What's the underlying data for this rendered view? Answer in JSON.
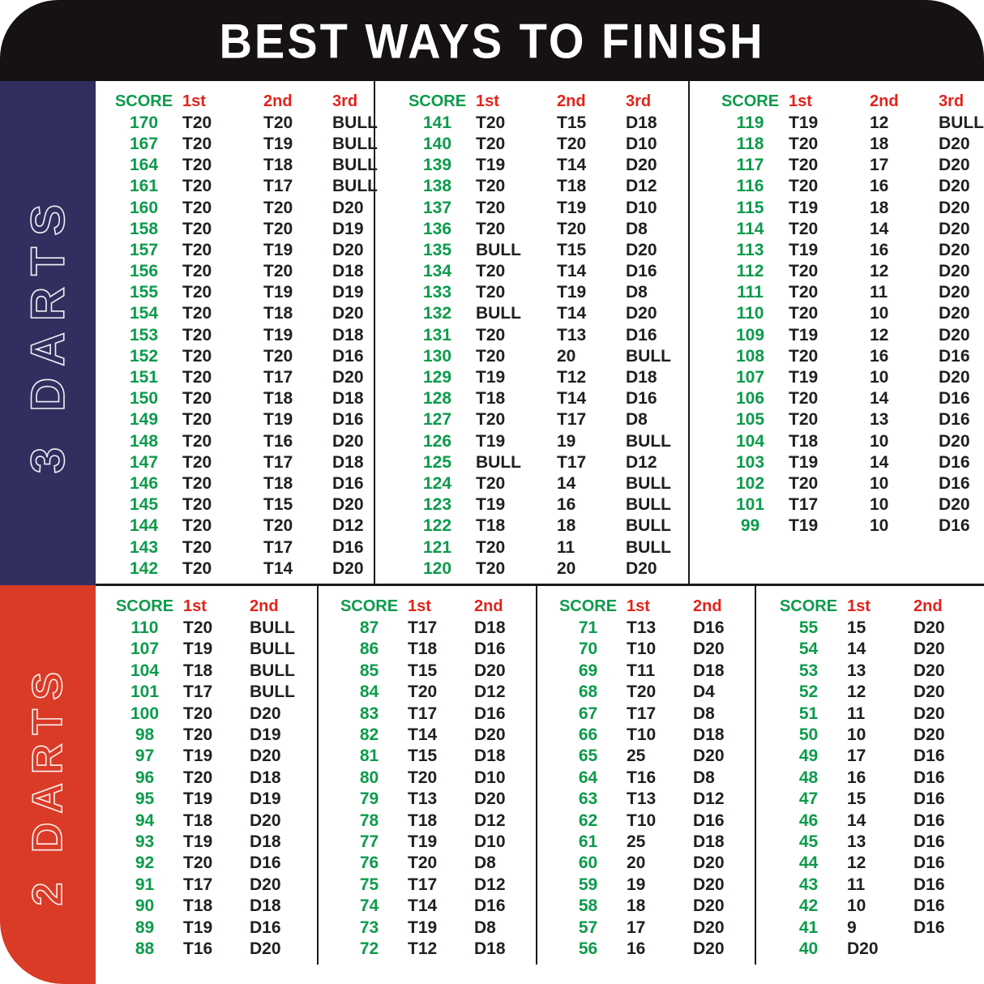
{
  "title": "BEST WAYS TO FINISH",
  "colors": {
    "header_bg": "#151114",
    "score_green": "#0C9B4B",
    "header_red": "#E2231B",
    "value_black": "#221E1F",
    "sidebar_navy": "#322E5F",
    "sidebar_red": "#D93B27"
  },
  "sections": [
    {
      "label": "3 DARTS",
      "columns": [
        "SCORE",
        "1st",
        "2nd",
        "3rd"
      ],
      "tables": [
        {
          "rows": [
            [
              "170",
              "T20",
              "T20",
              "BULL"
            ],
            [
              "167",
              "T20",
              "T19",
              "BULL"
            ],
            [
              "164",
              "T20",
              "T18",
              "BULL"
            ],
            [
              "161",
              "T20",
              "T17",
              "BULL"
            ],
            [
              "160",
              "T20",
              "T20",
              "D20"
            ],
            [
              "158",
              "T20",
              "T20",
              "D19"
            ],
            [
              "157",
              "T20",
              "T19",
              "D20"
            ],
            [
              "156",
              "T20",
              "T20",
              "D18"
            ],
            [
              "155",
              "T20",
              "T19",
              "D19"
            ],
            [
              "154",
              "T20",
              "T18",
              "D20"
            ],
            [
              "153",
              "T20",
              "T19",
              "D18"
            ],
            [
              "152",
              "T20",
              "T20",
              "D16"
            ],
            [
              "151",
              "T20",
              "T17",
              "D20"
            ],
            [
              "150",
              "T20",
              "T18",
              "D18"
            ],
            [
              "149",
              "T20",
              "T19",
              "D16"
            ],
            [
              "148",
              "T20",
              "T16",
              "D20"
            ],
            [
              "147",
              "T20",
              "T17",
              "D18"
            ],
            [
              "146",
              "T20",
              "T18",
              "D16"
            ],
            [
              "145",
              "T20",
              "T15",
              "D20"
            ],
            [
              "144",
              "T20",
              "T20",
              "D12"
            ],
            [
              "143",
              "T20",
              "T17",
              "D16"
            ],
            [
              "142",
              "T20",
              "T14",
              "D20"
            ]
          ]
        },
        {
          "rows": [
            [
              "141",
              "T20",
              "T15",
              "D18"
            ],
            [
              "140",
              "T20",
              "T20",
              "D10"
            ],
            [
              "139",
              "T19",
              "T14",
              "D20"
            ],
            [
              "138",
              "T20",
              "T18",
              "D12"
            ],
            [
              "137",
              "T20",
              "T19",
              "D10"
            ],
            [
              "136",
              "T20",
              "T20",
              "D8"
            ],
            [
              "135",
              "BULL",
              "T15",
              "D20"
            ],
            [
              "134",
              "T20",
              "T14",
              "D16"
            ],
            [
              "133",
              "T20",
              "T19",
              "D8"
            ],
            [
              "132",
              "BULL",
              "T14",
              "D20"
            ],
            [
              "131",
              "T20",
              "T13",
              "D16"
            ],
            [
              "130",
              "T20",
              "20",
              "BULL"
            ],
            [
              "129",
              "T19",
              "T12",
              "D18"
            ],
            [
              "128",
              "T18",
              "T14",
              "D16"
            ],
            [
              "127",
              "T20",
              "T17",
              "D8"
            ],
            [
              "126",
              "T19",
              "19",
              "BULL"
            ],
            [
              "125",
              "BULL",
              "T17",
              "D12"
            ],
            [
              "124",
              "T20",
              "14",
              "BULL"
            ],
            [
              "123",
              "T19",
              "16",
              "BULL"
            ],
            [
              "122",
              "T18",
              "18",
              "BULL"
            ],
            [
              "121",
              "T20",
              "11",
              "BULL"
            ],
            [
              "120",
              "T20",
              "20",
              "D20"
            ]
          ]
        },
        {
          "rows": [
            [
              "119",
              "T19",
              "12",
              "BULL"
            ],
            [
              "118",
              "T20",
              "18",
              "D20"
            ],
            [
              "117",
              "T20",
              "17",
              "D20"
            ],
            [
              "116",
              "T20",
              "16",
              "D20"
            ],
            [
              "115",
              "T19",
              "18",
              "D20"
            ],
            [
              "114",
              "T20",
              "14",
              "D20"
            ],
            [
              "113",
              "T19",
              "16",
              "D20"
            ],
            [
              "112",
              "T20",
              "12",
              "D20"
            ],
            [
              "111",
              "T20",
              "11",
              "D20"
            ],
            [
              "110",
              "T20",
              "10",
              "D20"
            ],
            [
              "109",
              "T19",
              "12",
              "D20"
            ],
            [
              "108",
              "T20",
              "16",
              "D16"
            ],
            [
              "107",
              "T19",
              "10",
              "D20"
            ],
            [
              "106",
              "T20",
              "14",
              "D16"
            ],
            [
              "105",
              "T20",
              "13",
              "D16"
            ],
            [
              "104",
              "T18",
              "10",
              "D20"
            ],
            [
              "103",
              "T19",
              "14",
              "D16"
            ],
            [
              "102",
              "T20",
              "10",
              "D16"
            ],
            [
              "101",
              "T17",
              "10",
              "D20"
            ],
            [
              "99",
              "T19",
              "10",
              "D16"
            ]
          ]
        }
      ]
    },
    {
      "label": "2 DARTS",
      "columns": [
        "SCORE",
        "1st",
        "2nd"
      ],
      "tables": [
        {
          "rows": [
            [
              "110",
              "T20",
              "BULL"
            ],
            [
              "107",
              "T19",
              "BULL"
            ],
            [
              "104",
              "T18",
              "BULL"
            ],
            [
              "101",
              "T17",
              "BULL"
            ],
            [
              "100",
              "T20",
              "D20"
            ],
            [
              "98",
              "T20",
              "D19"
            ],
            [
              "97",
              "T19",
              "D20"
            ],
            [
              "96",
              "T20",
              "D18"
            ],
            [
              "95",
              "T19",
              "D19"
            ],
            [
              "94",
              "T18",
              "D20"
            ],
            [
              "93",
              "T19",
              "D18"
            ],
            [
              "92",
              "T20",
              "D16"
            ],
            [
              "91",
              "T17",
              "D20"
            ],
            [
              "90",
              "T18",
              "D18"
            ],
            [
              "89",
              "T19",
              "D16"
            ],
            [
              "88",
              "T16",
              "D20"
            ]
          ]
        },
        {
          "rows": [
            [
              "87",
              "T17",
              "D18"
            ],
            [
              "86",
              "T18",
              "D16"
            ],
            [
              "85",
              "T15",
              "D20"
            ],
            [
              "84",
              "T20",
              "D12"
            ],
            [
              "83",
              "T17",
              "D16"
            ],
            [
              "82",
              "T14",
              "D20"
            ],
            [
              "81",
              "T15",
              "D18"
            ],
            [
              "80",
              "T20",
              "D10"
            ],
            [
              "79",
              "T13",
              "D20"
            ],
            [
              "78",
              "T18",
              "D12"
            ],
            [
              "77",
              "T19",
              "D10"
            ],
            [
              "76",
              "T20",
              "D8"
            ],
            [
              "75",
              "T17",
              "D12"
            ],
            [
              "74",
              "T14",
              "D16"
            ],
            [
              "73",
              "T19",
              "D8"
            ],
            [
              "72",
              "T12",
              "D18"
            ]
          ]
        },
        {
          "rows": [
            [
              "71",
              "T13",
              "D16"
            ],
            [
              "70",
              "T10",
              "D20"
            ],
            [
              "69",
              "T11",
              "D18"
            ],
            [
              "68",
              "T20",
              "D4"
            ],
            [
              "67",
              "T17",
              "D8"
            ],
            [
              "66",
              "T10",
              "D18"
            ],
            [
              "65",
              "25",
              "D20"
            ],
            [
              "64",
              "T16",
              "D8"
            ],
            [
              "63",
              "T13",
              "D12"
            ],
            [
              "62",
              "T10",
              "D16"
            ],
            [
              "61",
              "25",
              "D18"
            ],
            [
              "60",
              "20",
              "D20"
            ],
            [
              "59",
              "19",
              "D20"
            ],
            [
              "58",
              "18",
              "D20"
            ],
            [
              "57",
              "17",
              "D20"
            ],
            [
              "56",
              "16",
              "D20"
            ]
          ]
        },
        {
          "rows": [
            [
              "55",
              "15",
              "D20"
            ],
            [
              "54",
              "14",
              "D20"
            ],
            [
              "53",
              "13",
              "D20"
            ],
            [
              "52",
              "12",
              "D20"
            ],
            [
              "51",
              "11",
              "D20"
            ],
            [
              "50",
              "10",
              "D20"
            ],
            [
              "49",
              "17",
              "D16"
            ],
            [
              "48",
              "16",
              "D16"
            ],
            [
              "47",
              "15",
              "D16"
            ],
            [
              "46",
              "14",
              "D16"
            ],
            [
              "45",
              "13",
              "D16"
            ],
            [
              "44",
              "12",
              "D16"
            ],
            [
              "43",
              "11",
              "D16"
            ],
            [
              "42",
              "10",
              "D16"
            ],
            [
              "41",
              "9",
              "D16"
            ],
            [
              "40",
              "D20",
              ""
            ]
          ]
        }
      ]
    }
  ]
}
